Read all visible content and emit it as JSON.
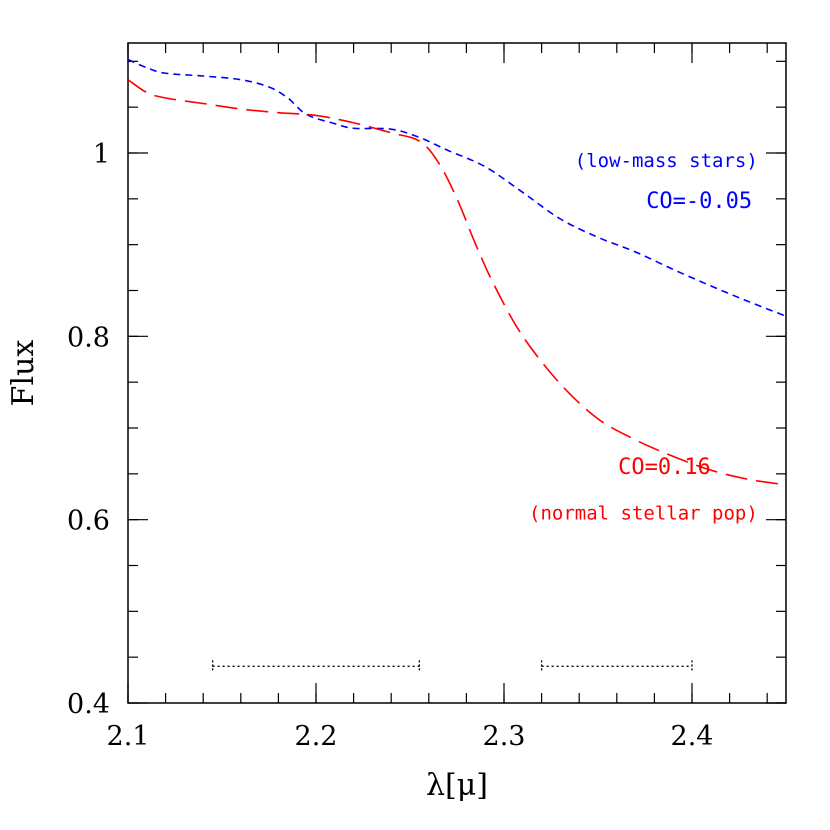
{
  "chart_data": {
    "type": "line",
    "xlabel": "λ[μ]",
    "ylabel": "Flux",
    "xlim": [
      2.1,
      2.45
    ],
    "ylim": [
      0.4,
      1.12
    ],
    "x_ticks": [
      {
        "value": 2.1,
        "label": "2.1"
      },
      {
        "value": 2.2,
        "label": "2.2"
      },
      {
        "value": 2.3,
        "label": "2.3"
      },
      {
        "value": 2.4,
        "label": "2.4"
      }
    ],
    "x_minor_step": 0.02,
    "y_ticks": [
      {
        "value": 0.4,
        "label": "0.4"
      },
      {
        "value": 0.6,
        "label": "0.6"
      },
      {
        "value": 0.8,
        "label": "0.8"
      },
      {
        "value": 1.0,
        "label": "1"
      }
    ],
    "y_minor_step": 0.05,
    "grid": false,
    "series": [
      {
        "color": "#0000ff",
        "style": "short-dash",
        "x": [
          2.1,
          2.11,
          2.12,
          2.14,
          2.16,
          2.175,
          2.185,
          2.195,
          2.21,
          2.22,
          2.24,
          2.255,
          2.27,
          2.29,
          2.31,
          2.33,
          2.35,
          2.37,
          2.39,
          2.41,
          2.43,
          2.45
        ],
        "y": [
          1.102,
          1.093,
          1.087,
          1.084,
          1.08,
          1.072,
          1.06,
          1.042,
          1.032,
          1.027,
          1.026,
          1.017,
          1.003,
          0.985,
          0.957,
          0.928,
          0.908,
          0.892,
          0.873,
          0.855,
          0.838,
          0.822
        ]
      },
      {
        "color": "#ff0000",
        "style": "long-dash",
        "x": [
          2.1,
          2.11,
          2.12,
          2.14,
          2.16,
          2.18,
          2.2,
          2.22,
          2.24,
          2.255,
          2.265,
          2.275,
          2.285,
          2.295,
          2.31,
          2.33,
          2.35,
          2.37,
          2.39,
          2.41,
          2.43,
          2.45
        ],
        "y": [
          1.08,
          1.066,
          1.06,
          1.054,
          1.048,
          1.044,
          1.041,
          1.033,
          1.022,
          1.013,
          0.99,
          0.95,
          0.9,
          0.855,
          0.8,
          0.748,
          0.71,
          0.687,
          0.669,
          0.654,
          0.644,
          0.638
        ]
      }
    ],
    "annotations": [
      {
        "text": "(low-mass stars)",
        "color": "#0000ff",
        "x": 2.435,
        "y": 0.985,
        "anchor": "end",
        "size": "small"
      },
      {
        "text": "CO=-0.05",
        "color": "#0000ff",
        "x": 2.432,
        "y": 0.94,
        "anchor": "end",
        "size": "large"
      },
      {
        "text": "CO=0.16",
        "color": "#ff0000",
        "x": 2.41,
        "y": 0.65,
        "anchor": "end",
        "size": "large"
      },
      {
        "text": "(normal stellar pop)",
        "color": "#ff0000",
        "x": 2.435,
        "y": 0.6,
        "anchor": "end",
        "size": "small"
      }
    ],
    "ranges": [
      {
        "x1": 2.145,
        "x2": 2.255,
        "y": 0.44,
        "color": "#000000"
      },
      {
        "x1": 2.32,
        "x2": 2.4,
        "y": 0.44,
        "color": "#000000"
      }
    ]
  }
}
